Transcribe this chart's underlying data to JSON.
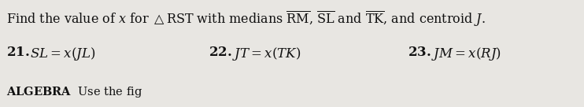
{
  "background_color": "#d8d8d8",
  "page_color": "#e8e6e2",
  "title_line1": "Find the value of $\\it{x}$ for $\\triangle$RST with medians $\\overline{\\mathrm{RM}}$, $\\overline{\\mathrm{SL}}$ and $\\overline{\\mathrm{TK}}$, and centroid $\\it{J}$.",
  "item21_num": "21.",
  "item21_text": "$SL = x(JL)$",
  "item22_num": "22.",
  "item22_text": "$JT = x(TK)$",
  "item23_num": "23.",
  "item23_text": "$JM = x(RJ)$",
  "bottom_bold": "ALGEBRA",
  "bottom_rest": "  Use the fig",
  "font_size_title": 11.5,
  "font_size_items": 12.0,
  "font_size_bottom": 10.5,
  "text_color": "#111111",
  "fig_width": 7.42,
  "fig_height": 1.36,
  "dpi": 100
}
